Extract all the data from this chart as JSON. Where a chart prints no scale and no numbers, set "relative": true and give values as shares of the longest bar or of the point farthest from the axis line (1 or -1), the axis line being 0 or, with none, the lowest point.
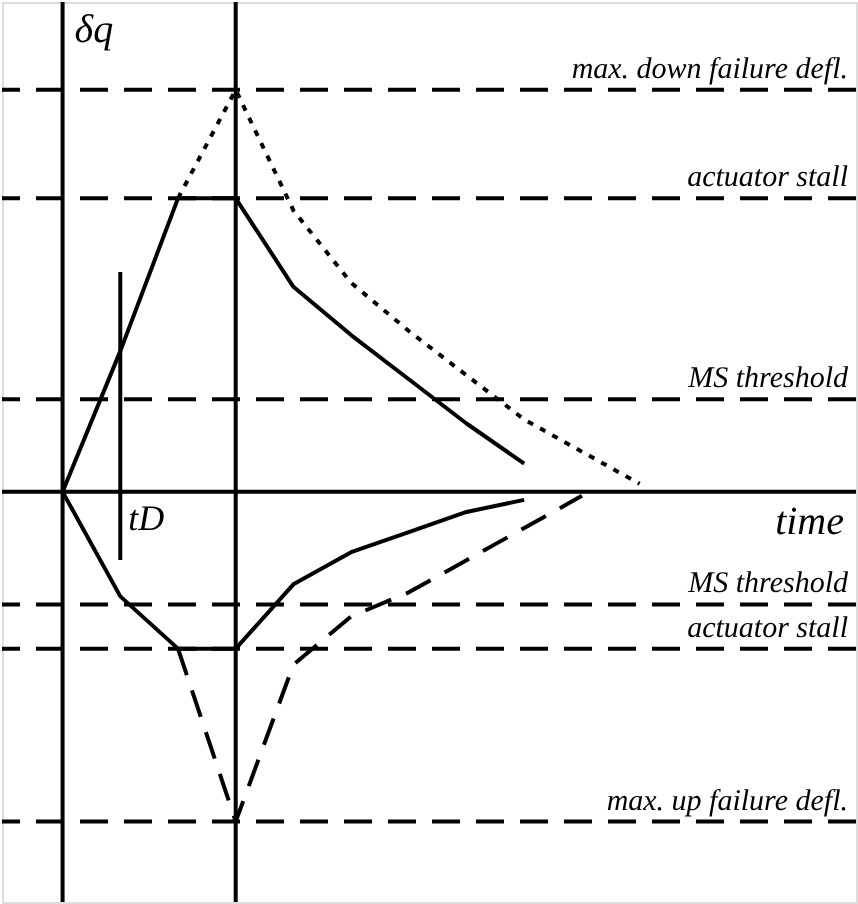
{
  "chart_data": {
    "type": "line",
    "relative": true,
    "ylabel": "δq",
    "xlabel": "time",
    "legend": false,
    "categories": [
      null,
      null,
      null,
      null,
      null,
      null,
      null,
      null,
      null,
      null,
      null,
      null
    ],
    "series": [
      {
        "color": "#000000",
        "line_style": "solid",
        "values": [
          0,
          0.35,
          0.73,
          0.73,
          0.51,
          0.39,
          0.28,
          0.17,
          0.07,
          null,
          null,
          null
        ]
      },
      {
        "color": "#000000",
        "line_style": "dotted",
        "values": [
          null,
          null,
          0.73,
          1.0,
          0.7,
          0.52,
          0.4,
          0.29,
          0.18,
          0.1,
          0.02,
          null
        ]
      },
      {
        "color": "#000000",
        "line_style": "solid",
        "values": [
          0,
          -0.26,
          -0.39,
          -0.39,
          -0.23,
          -0.15,
          -0.1,
          -0.05,
          -0.02,
          null,
          null,
          null
        ]
      },
      {
        "color": "#000000",
        "line_style": "dashed",
        "values": [
          null,
          null,
          -0.39,
          -0.82,
          -0.43,
          -0.31,
          -0.25,
          -0.17,
          -0.09,
          -0.01,
          null,
          null
        ]
      }
    ],
    "ref_lines": [
      {
        "axis": "y",
        "value": 1.0,
        "label": "max. down failure defl.",
        "line_style": "dashed",
        "color": "#000000"
      },
      {
        "axis": "y",
        "value": 0.73,
        "label": "actuator stall",
        "line_style": "dashed",
        "color": "#000000"
      },
      {
        "axis": "y",
        "value": 0.23,
        "label": "MS threshold",
        "line_style": "dashed",
        "color": "#000000"
      },
      {
        "axis": "y",
        "value": -0.28,
        "label": "MS threshold",
        "line_style": "dashed",
        "color": "#000000"
      },
      {
        "axis": "y",
        "value": -0.39,
        "label": "actuator stall",
        "line_style": "dashed",
        "color": "#000000"
      },
      {
        "axis": "y",
        "value": -0.82,
        "label": "max. up failure defl.",
        "line_style": "dashed",
        "color": "#000000"
      }
    ],
    "annotations": [
      "tD"
    ]
  }
}
